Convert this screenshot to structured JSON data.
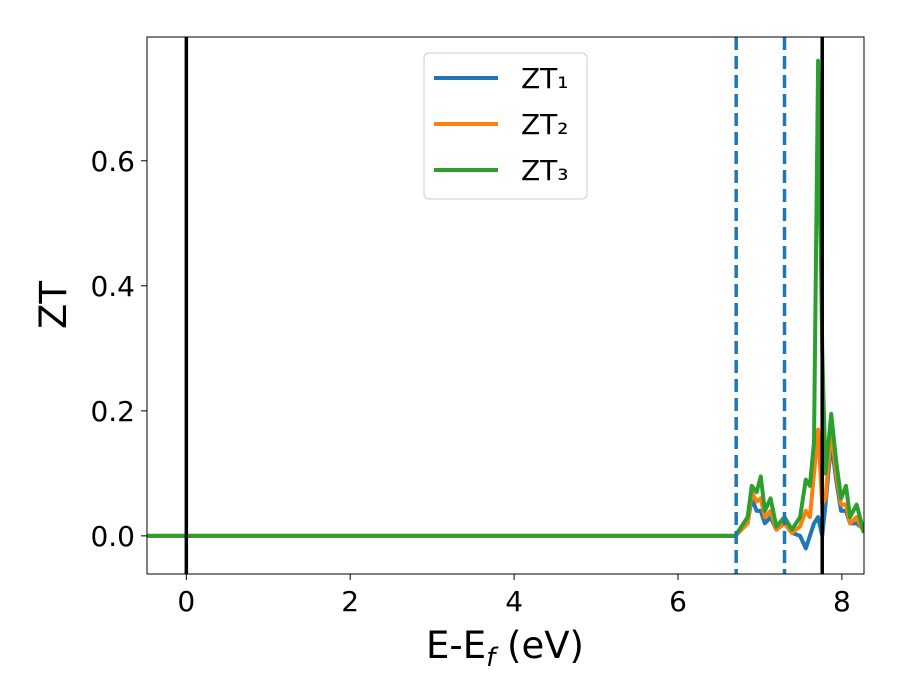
{
  "chart_data": {
    "type": "line",
    "y_label": "ZT",
    "x_label": [
      "E-E",
      "f",
      " (eV)"
    ],
    "x": [
      -0.48,
      6.6,
      6.7,
      6.85,
      6.9,
      6.96,
      7.01,
      7.06,
      7.13,
      7.2,
      7.3,
      7.39,
      7.49,
      7.56,
      7.61,
      7.66,
      7.71,
      7.76,
      7.8,
      7.87,
      7.93,
      7.99,
      8.05,
      8.1,
      8.18,
      8.27
    ],
    "series": [
      {
        "name": "ZT₁",
        "color": "#1f77b4",
        "values": [
          0,
          0,
          0,
          0.02,
          0.06,
          0.04,
          0.04,
          0.02,
          0.03,
          0.01,
          0.02,
          0.005,
          0.0,
          -0.02,
          0.0,
          0.02,
          0.03,
          0.0,
          0.05,
          0.15,
          0.09,
          0.04,
          0.04,
          0.02,
          0.02,
          0.01
        ]
      },
      {
        "name": "ZT₂",
        "color": "#ff7f0e",
        "values": [
          0,
          0,
          0,
          0.02,
          0.07,
          0.055,
          0.06,
          0.03,
          0.04,
          0.01,
          0.02,
          0.005,
          0.015,
          0.04,
          0.03,
          0.1,
          0.17,
          0.05,
          0.06,
          0.17,
          0.1,
          0.05,
          0.05,
          0.02,
          0.03,
          0.005
        ]
      },
      {
        "name": "ZT₃",
        "color": "#2ca02c",
        "values": [
          0,
          0,
          0,
          0.03,
          0.08,
          0.07,
          0.095,
          0.04,
          0.06,
          0.015,
          0.03,
          0.01,
          0.03,
          0.09,
          0.08,
          0.15,
          0.76,
          0.3,
          0.1,
          0.195,
          0.12,
          0.06,
          0.08,
          0.03,
          0.05,
          0.005
        ]
      }
    ],
    "vlines": [
      {
        "x": 0,
        "color": "#000000",
        "style": "solid"
      },
      {
        "x": 6.71,
        "color": "#1f77b4",
        "style": "dashed"
      },
      {
        "x": 7.3,
        "color": "#1f77b4",
        "style": "dashed"
      },
      {
        "x": 7.76,
        "color": "#000000",
        "style": "solid"
      }
    ],
    "xlim": [
      -0.48,
      8.27
    ],
    "ylim": [
      -0.061,
      0.798
    ],
    "xticks": [
      0,
      2,
      4,
      6,
      8
    ],
    "yticks": [
      {
        "value": 0,
        "label": "0.0"
      },
      0.2,
      0.4,
      0.6
    ],
    "legend": "upper center",
    "grid": false
  }
}
